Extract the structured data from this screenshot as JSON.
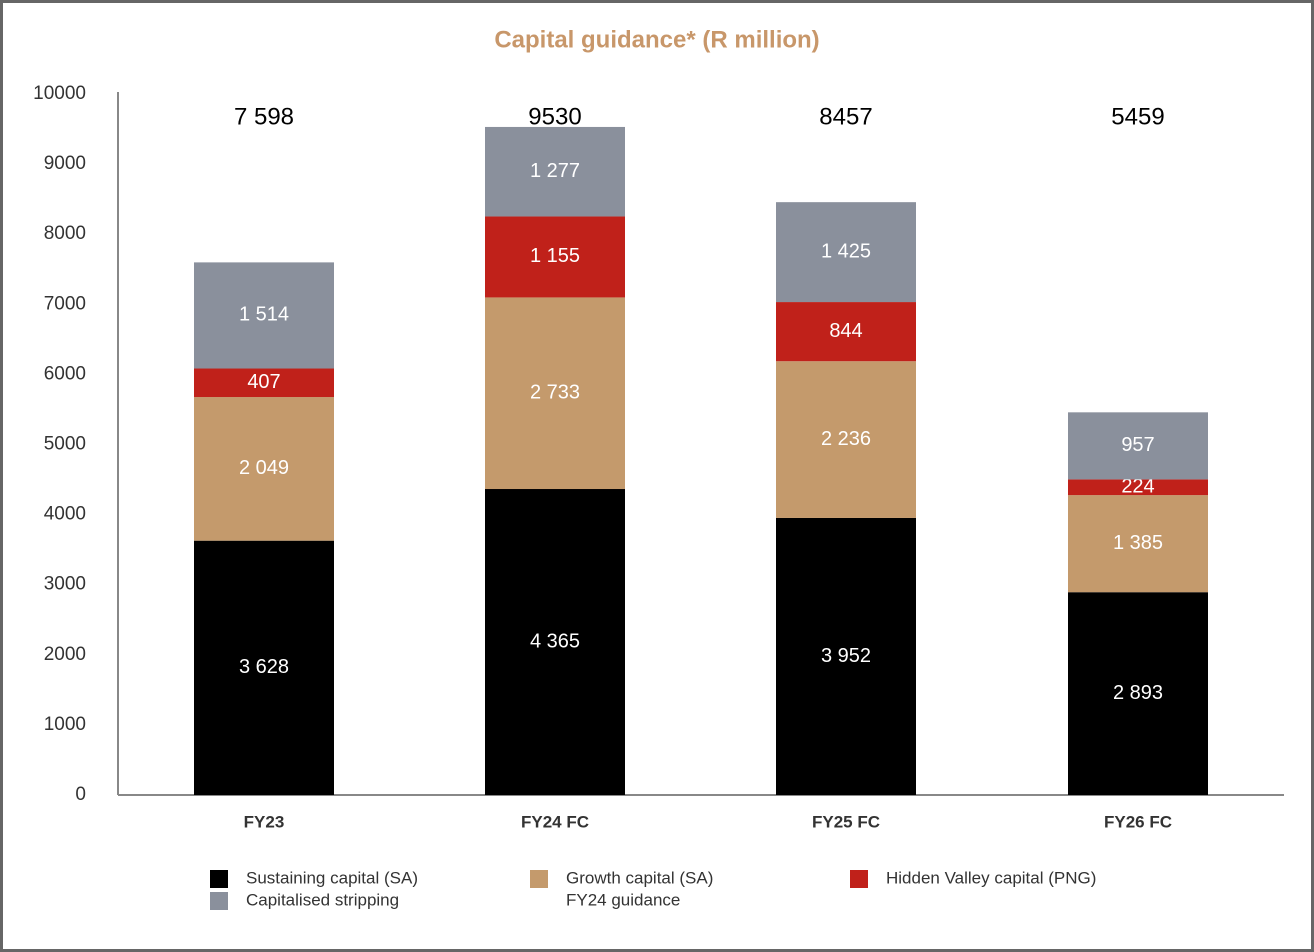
{
  "chart_data": {
    "type": "stacked_bar",
    "title": "Capital guidance* (R million)",
    "categories": [
      "FY23",
      "FY24 FC",
      "FY25 FC",
      "FY26 FC"
    ],
    "series": [
      {
        "name": "Sustaining capital (SA)",
        "color": "#000000",
        "values": [
          3628,
          4365,
          3952,
          2893
        ],
        "value_labels": [
          "3 628",
          "4 365",
          "3 952",
          "2 893"
        ]
      },
      {
        "name": "Growth capital (SA)",
        "color": "#c49a6c",
        "values": [
          2049,
          2733,
          2236,
          1385
        ],
        "value_labels": [
          "2 049",
          "2 733",
          "2 236",
          "1 385"
        ]
      },
      {
        "name": "Hidden Valley capital (PNG)",
        "color": "#c0211a",
        "values": [
          407,
          1155,
          844,
          224
        ],
        "value_labels": [
          "407",
          "1 155",
          "844",
          "224"
        ]
      },
      {
        "name": "Capitalised stripping",
        "color": "#8a909c",
        "values": [
          1514,
          1277,
          1425,
          957
        ],
        "value_labels": [
          "1 514",
          "1 277",
          "1 425",
          "957"
        ]
      }
    ],
    "totals": [
      7598,
      9530,
      8457,
      5459
    ],
    "total_labels": [
      "7 598",
      "9530",
      "8457",
      "5459"
    ],
    "legend_note": "FY24 guidance",
    "ylim": [
      0,
      10000
    ],
    "yticks": [
      0,
      1000,
      2000,
      3000,
      4000,
      5000,
      6000,
      7000,
      8000,
      9000,
      10000
    ],
    "grid": false
  }
}
